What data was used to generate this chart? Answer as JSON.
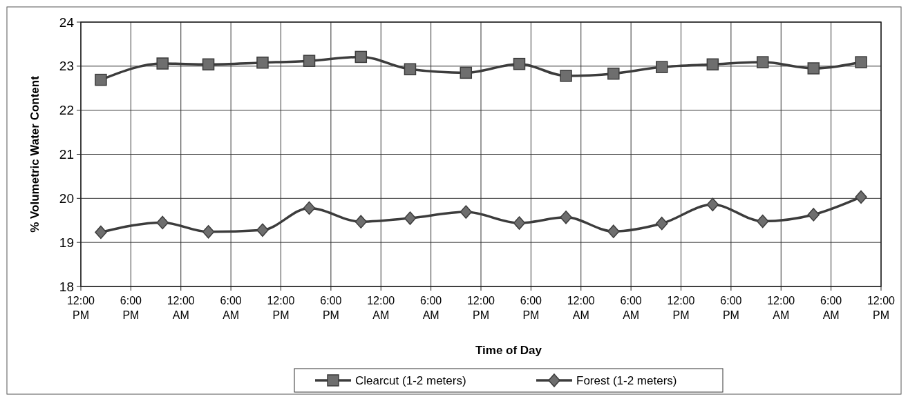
{
  "chart_data": {
    "type": "line",
    "xlabel": "Time of Day",
    "ylabel": "% Volumetric Water Content",
    "x": [
      "2000-01-01T14:24",
      "2000-01-01T21:48",
      "2000-01-02T03:18",
      "2000-01-02T09:48",
      "2000-01-02T15:24",
      "2000-01-02T21:36",
      "2000-01-03T03:30",
      "2000-01-03T10:12",
      "2000-01-03T16:36",
      "2000-01-03T22:12",
      "2000-01-04T03:54",
      "2000-01-04T09:42",
      "2000-01-04T15:48",
      "2000-01-04T21:48",
      "2000-01-05T03:54",
      "2000-01-05T09:36"
    ],
    "series": [
      {
        "name": "Clearcut (1-2 meters)",
        "color": "#3c3c3c",
        "marker": "square",
        "values": [
          22.69,
          23.06,
          23.04,
          23.08,
          23.12,
          23.21,
          22.93,
          22.85,
          23.05,
          22.78,
          22.83,
          22.98,
          23.04,
          23.09,
          22.95,
          23.09
        ]
      },
      {
        "name": "Forest (1-2 meters)",
        "color": "#3c3c3c",
        "marker": "diamond",
        "values": [
          19.23,
          19.45,
          19.24,
          19.28,
          19.78,
          19.47,
          19.55,
          19.69,
          19.44,
          19.57,
          19.25,
          19.43,
          19.86,
          19.48,
          19.63,
          20.03
        ]
      }
    ],
    "xlim": [
      "2000-01-01T12:00",
      "2000-01-05T12:00"
    ],
    "xticks": [
      {
        "value": "2000-01-01T12:00",
        "label": "12:00 PM"
      },
      {
        "value": "2000-01-01T18:00",
        "label": "6:00 PM"
      },
      {
        "value": "2000-01-02T00:00",
        "label": "12:00 AM"
      },
      {
        "value": "2000-01-02T06:00",
        "label": "6:00 AM"
      },
      {
        "value": "2000-01-02T12:00",
        "label": "12:00 PM"
      },
      {
        "value": "2000-01-02T18:00",
        "label": "6:00 PM"
      },
      {
        "value": "2000-01-03T00:00",
        "label": "12:00 AM"
      },
      {
        "value": "2000-01-03T06:00",
        "label": "6:00 AM"
      },
      {
        "value": "2000-01-03T12:00",
        "label": "12:00 PM"
      },
      {
        "value": "2000-01-03T18:00",
        "label": "6:00 PM"
      },
      {
        "value": "2000-01-04T00:00",
        "label": "12:00 AM"
      },
      {
        "value": "2000-01-04T06:00",
        "label": "6:00 AM"
      },
      {
        "value": "2000-01-04T12:00",
        "label": "12:00 PM"
      },
      {
        "value": "2000-01-04T18:00",
        "label": "6:00 PM"
      },
      {
        "value": "2000-01-05T00:00",
        "label": "12:00 AM"
      },
      {
        "value": "2000-01-05T06:00",
        "label": "6:00 AM"
      },
      {
        "value": "2000-01-05T12:00",
        "label": "12:00 PM"
      }
    ],
    "ylim": [
      18,
      24
    ],
    "yticks": [
      18,
      19,
      20,
      21,
      22,
      23,
      24
    ],
    "grid": true,
    "legend": "bottom",
    "line_style": "solid"
  }
}
